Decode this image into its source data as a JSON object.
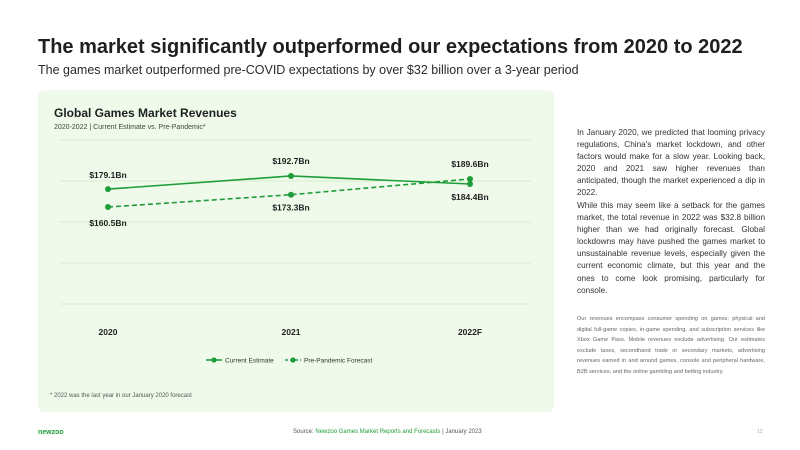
{
  "header": {
    "title": "The market significantly outperformed our expectations from 2020 to 2022",
    "subtitle": "The games market outperformed pre-COVID expectations by over $32 billion over a 3-year period"
  },
  "chart_data": {
    "type": "line",
    "title": "Global Games Market Revenues",
    "subtitle": "2020-2022 | Current Estimate vs. Pre-Pandemic*",
    "categories": [
      "2020",
      "2021",
      "2022F"
    ],
    "series": [
      {
        "name": "Current Estimate",
        "values": [
          179.1,
          192.7,
          184.4
        ],
        "labels": [
          "$179.1Bn",
          "$192.7Bn",
          "$184.4Bn"
        ],
        "style": "solid",
        "color": "#1f9d3a"
      },
      {
        "name": "Pre-Pandemic Forecast",
        "values": [
          160.5,
          173.3,
          189.6
        ],
        "labels": [
          "$160.5Bn",
          "$173.3Bn",
          "$189.6Bn"
        ],
        "style": "dashed",
        "color": "#1f9d3a"
      }
    ],
    "ylim": [
      60,
      230
    ],
    "grid": true,
    "legend": "bottom",
    "footnote": "* 2022 was the last year in our January 2020 forecast"
  },
  "body": {
    "paragraph1": "In January 2020, we predicted that looming privacy regulations, China's market lockdown, and other factors would make for a slow year. Looking back, 2020 and 2021 saw higher revenues than anticipated, though the market experienced a dip in 2022.",
    "paragraph2": "While this may seem like a setback for the games market, the total revenue in 2022 was $32.8 billion higher than we had originally forecast. Global lockdowns may have pushed the games market to unsustainable revenue levels, especially given the current economic climate, but this year and the ones to come look promising, particularly for console.",
    "note": "Our revenues encompass consumer spending on games: physical and digital full-game copies, in-game spending, and subscription services like Xbox Game Pass. Mobile revenues exclude advertising. Our estimates exclude taxes, secondhand trade or secondary markets, advertising revenues earned in and around games, console and peripheral hardware, B2B services, and the online gambling and betting industry."
  },
  "footer": {
    "logo": "newzoo",
    "source_prefix": "Source: ",
    "source_link": "Newzoo Games Market Reports and Forecasts",
    "source_suffix": " | January 2023",
    "page_number": "12"
  }
}
